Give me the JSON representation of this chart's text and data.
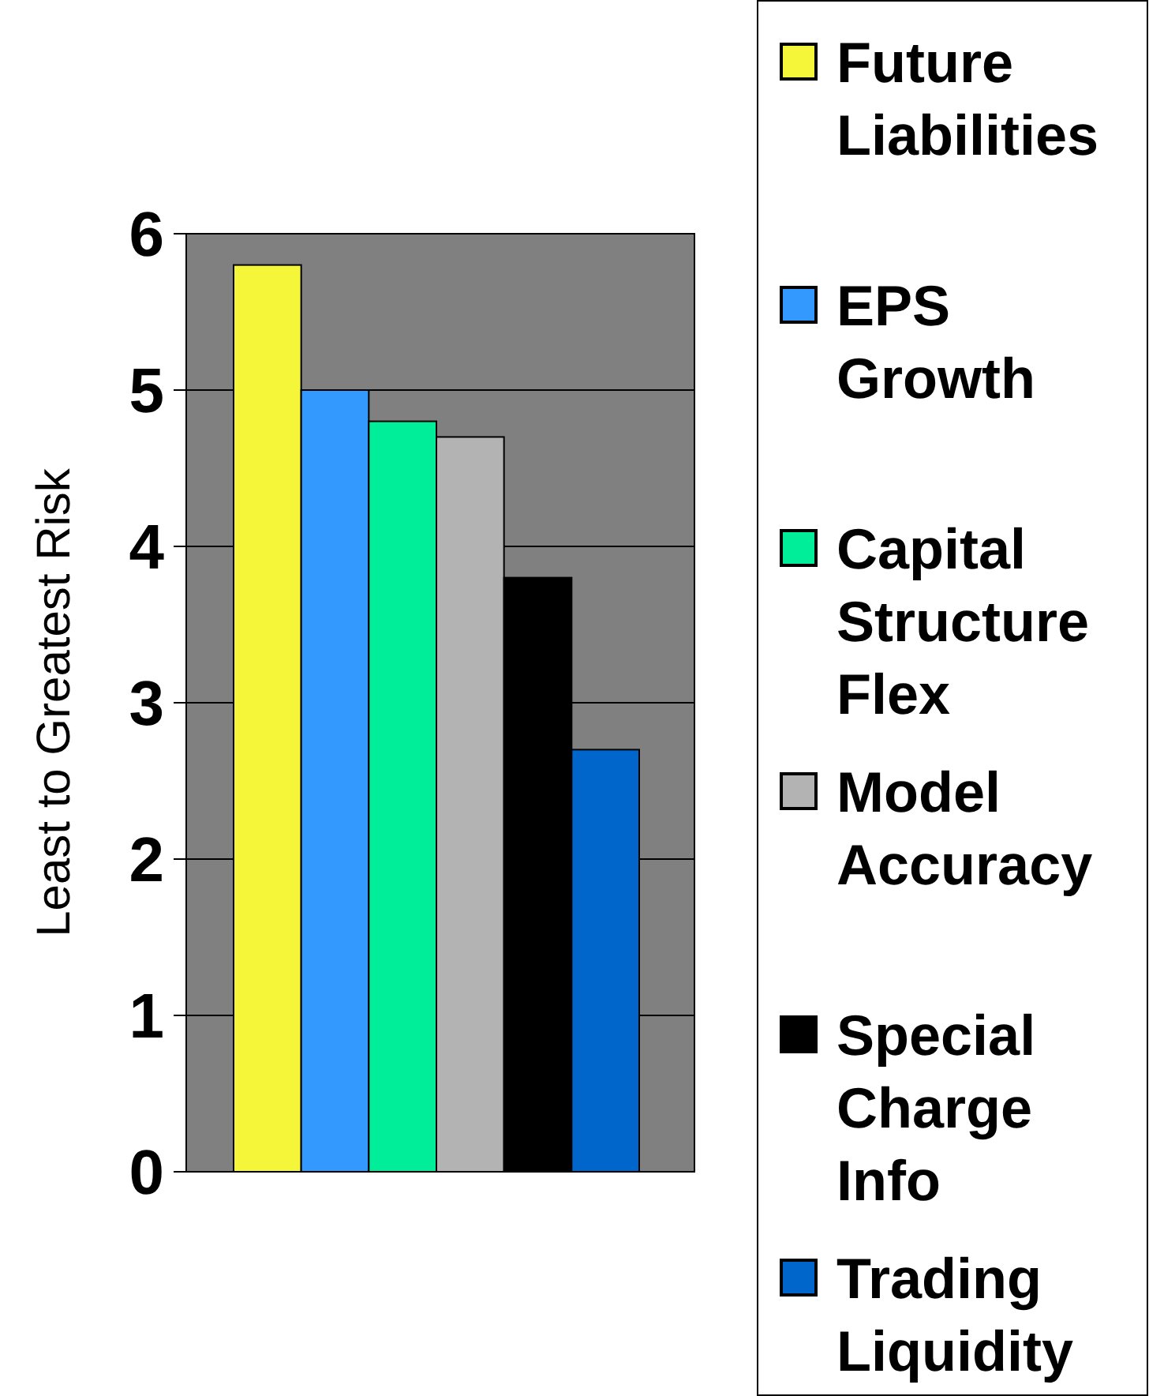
{
  "chart_data": {
    "type": "bar",
    "ylabel": "Least to Greatest Risk",
    "categories": [
      null
    ],
    "series": [
      {
        "name": "Future Liabilities",
        "color": "#f5f53a",
        "values": [
          5.8
        ]
      },
      {
        "name": "EPS Growth",
        "color": "#3399ff",
        "values": [
          5.0
        ]
      },
      {
        "name": "Capital Structure Flex",
        "color": "#00ee99",
        "values": [
          4.8
        ]
      },
      {
        "name": "Model Accuracy",
        "color": "#b3b3b3",
        "values": [
          4.7
        ]
      },
      {
        "name": "Special Charge Info",
        "color": "#000000",
        "values": [
          3.8
        ]
      },
      {
        "name": "Trading Liquidity",
        "color": "#0066cc",
        "values": [
          2.7
        ]
      }
    ],
    "ylim": [
      0,
      6
    ],
    "yticks": [
      0,
      1,
      2,
      3,
      4,
      5,
      6
    ],
    "grid": "y",
    "legend": "right"
  }
}
